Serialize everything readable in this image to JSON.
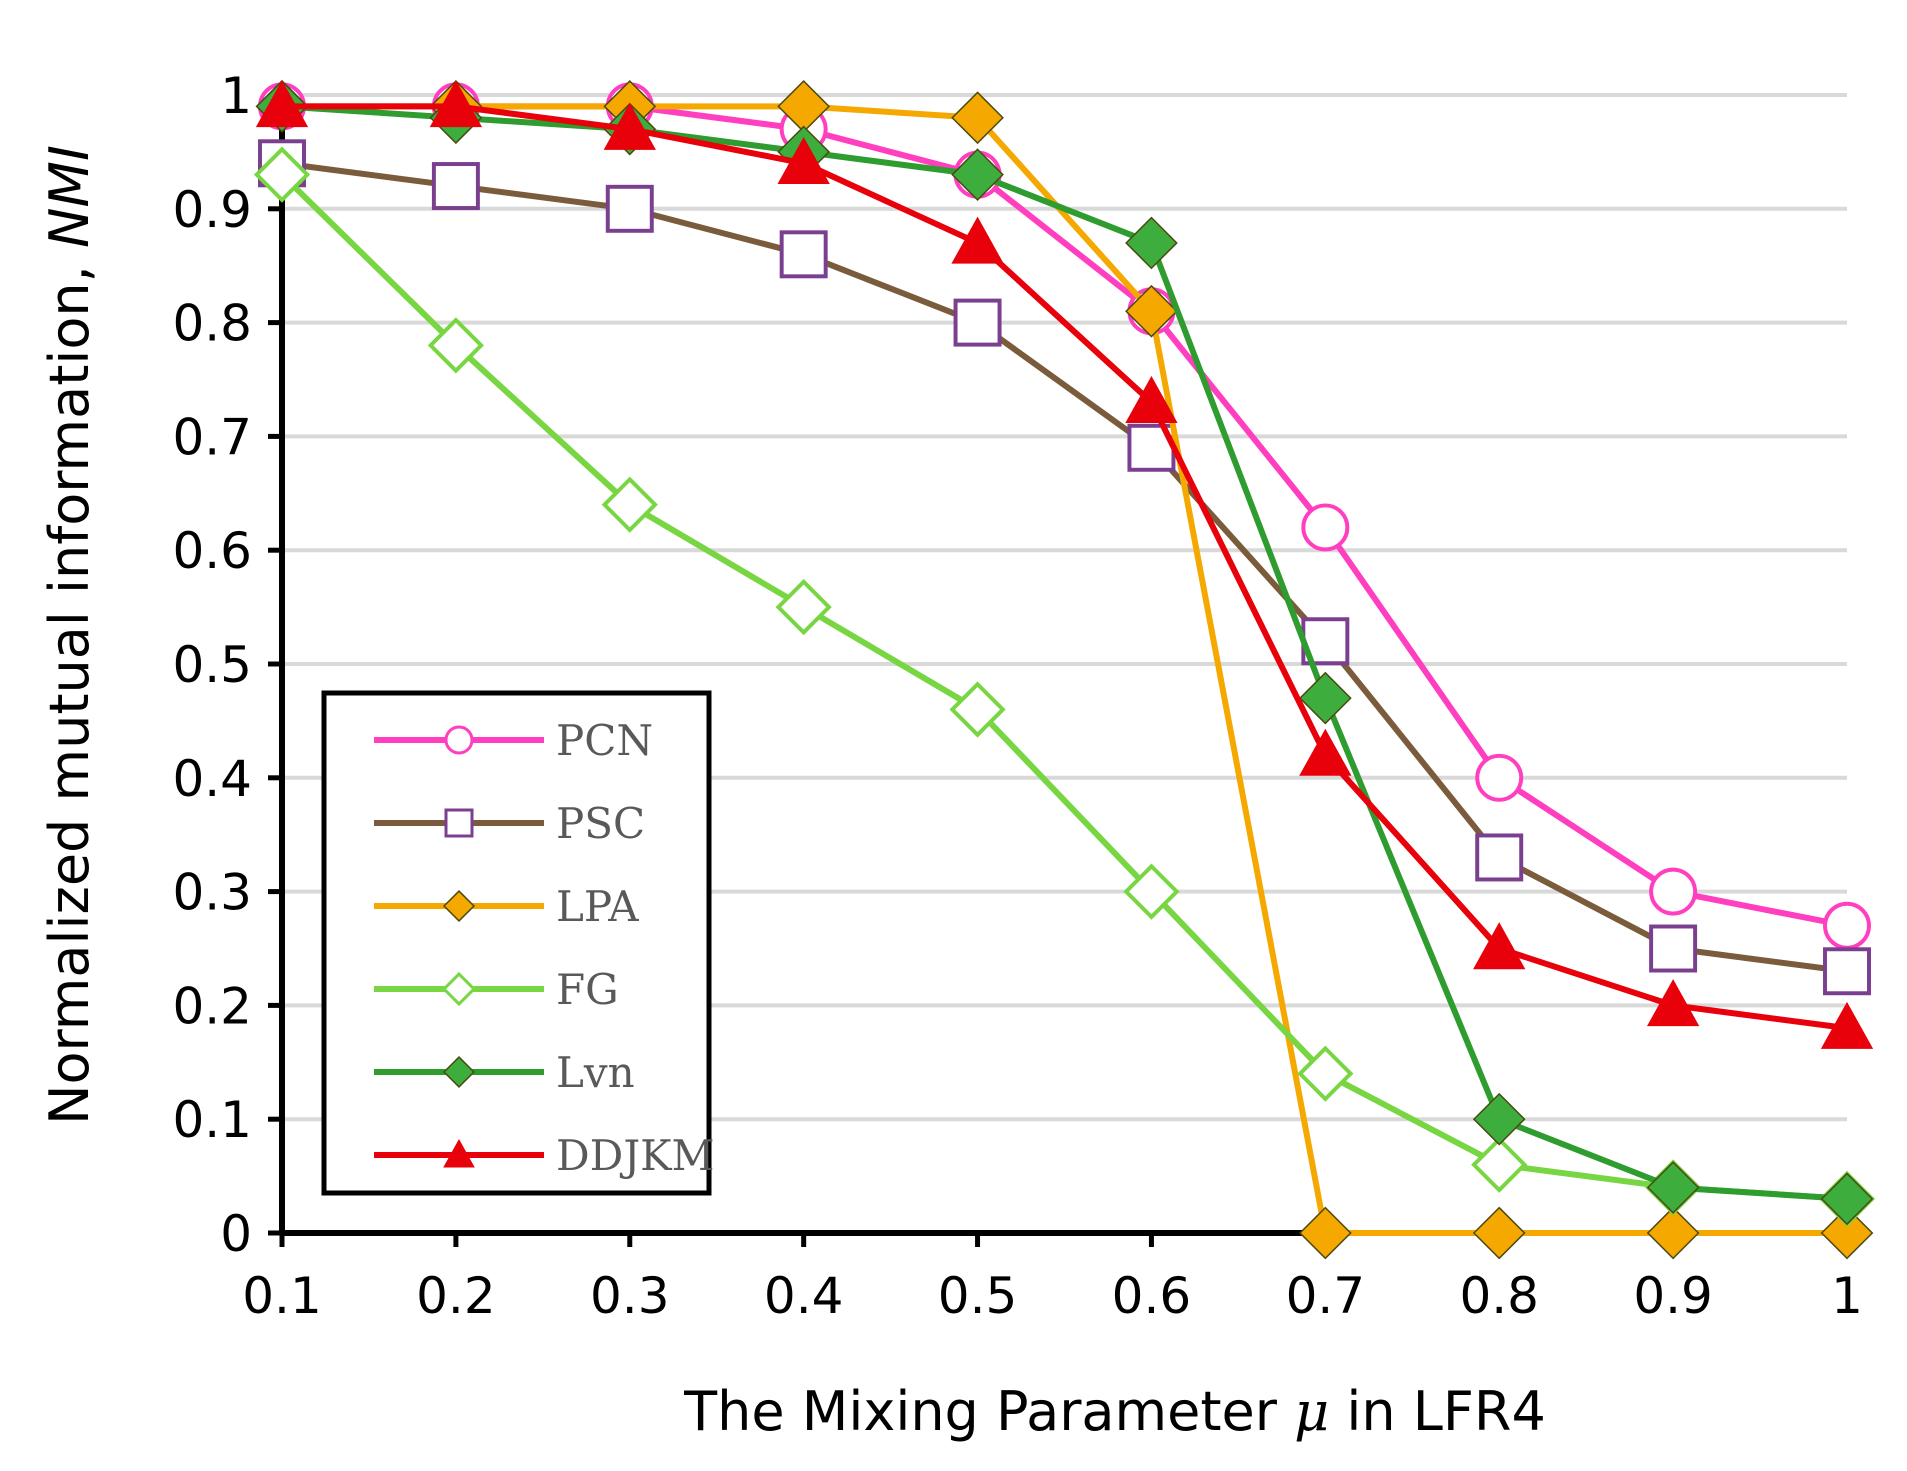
{
  "chart_data": {
    "type": "line",
    "title": "",
    "xlabel": "The Mixing Parameter",
    "xlabel_symbol": "μ",
    "xlabel_suffix": "in LFR4",
    "ylabel": "Normalized mutual information,",
    "ylabel_symbol": "NMI",
    "x": [
      0.1,
      0.2,
      0.3,
      0.4,
      0.5,
      0.6,
      0.7,
      0.8,
      0.9,
      1
    ],
    "x_tick_labels": [
      "0.1",
      "0.2",
      "0.3",
      "0.4",
      "0.5",
      "0.6",
      "0.7",
      "0.8",
      "0.9",
      "1"
    ],
    "y_ticks": [
      0,
      0.1,
      0.2,
      0.3,
      0.4,
      0.5,
      0.6,
      0.7,
      0.8,
      0.9,
      1
    ],
    "y_tick_labels": [
      "0",
      "0.1",
      "0.2",
      "0.3",
      "0.4",
      "0.5",
      "0.6",
      "0.7",
      "0.8",
      "0.9",
      "1"
    ],
    "xlim": [
      0.1,
      1
    ],
    "ylim": [
      0,
      1
    ],
    "grid": "horizontal",
    "legend_position": "bottom-left",
    "series": [
      {
        "name": "PCN",
        "color": "#ff3fbf",
        "marker": "circle-open",
        "marker_color": "#ff3fbf",
        "values": [
          0.99,
          0.99,
          0.99,
          0.97,
          0.93,
          0.81,
          0.62,
          0.4,
          0.3,
          0.27
        ]
      },
      {
        "name": "PSC",
        "color": "#7a5c3c",
        "marker": "square-open",
        "marker_color": "#7b3f8f",
        "values": [
          0.94,
          0.92,
          0.9,
          0.86,
          0.8,
          0.69,
          0.52,
          0.33,
          0.25,
          0.23
        ]
      },
      {
        "name": "LPA",
        "color": "#f5a800",
        "marker": "diamond-filled",
        "marker_color": "#f5a800",
        "values": [
          0.99,
          0.99,
          0.99,
          0.99,
          0.98,
          0.81,
          0,
          0,
          0,
          0
        ]
      },
      {
        "name": "FG",
        "color": "#77d642",
        "marker": "diamond-open",
        "marker_color": "#77d642",
        "values": [
          0.93,
          0.78,
          0.64,
          0.55,
          0.46,
          0.3,
          0.14,
          0.06,
          0.04,
          0.03
        ]
      },
      {
        "name": "Lvn",
        "color": "#2e9c2e",
        "marker": "diamond-filled",
        "marker_color": "#3dae3d",
        "values": [
          0.99,
          0.98,
          0.97,
          0.95,
          0.93,
          0.87,
          0.47,
          0.1,
          0.04,
          0.03
        ]
      },
      {
        "name": "DDJKM",
        "color": "#e8000b",
        "marker": "triangle-filled",
        "marker_color": "#e8000b",
        "values": [
          0.99,
          0.99,
          0.97,
          0.94,
          0.87,
          0.73,
          0.42,
          0.25,
          0.2,
          0.18
        ]
      }
    ]
  }
}
